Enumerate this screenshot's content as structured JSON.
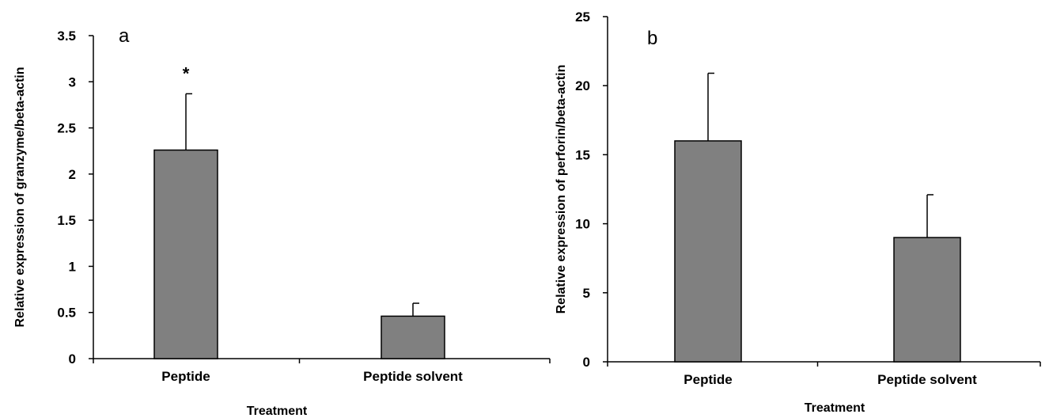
{
  "chart_data": [
    {
      "type": "bar",
      "panel_label": "a",
      "categories": [
        "Peptide",
        "Peptide solvent"
      ],
      "values": [
        2.26,
        0.46
      ],
      "error_upper": [
        2.87,
        0.6
      ],
      "annotations": [
        "*",
        ""
      ],
      "xlabel": "Treatment",
      "ylabel": "Relative expression of granzyme/beta-actin",
      "ylim": [
        0,
        3.5
      ],
      "yticks": [
        0,
        0.5,
        1,
        1.5,
        2,
        2.5,
        3,
        3.5
      ],
      "ytick_labels": [
        "0",
        "0.5",
        "1",
        "1.5",
        "2",
        "2.5",
        "3",
        "3.5"
      ],
      "grid": false,
      "bar_color": "#808080"
    },
    {
      "type": "bar",
      "panel_label": "b",
      "categories": [
        "Peptide",
        "Peptide solvent"
      ],
      "values": [
        16.0,
        9.0
      ],
      "error_upper": [
        20.9,
        12.1
      ],
      "annotations": [
        "",
        ""
      ],
      "xlabel": "Treatment",
      "ylabel": "Relative expression of perforin/beta-actin",
      "ylim": [
        0,
        25
      ],
      "yticks": [
        0,
        5,
        10,
        15,
        20,
        25
      ],
      "ytick_labels": [
        "0",
        "5",
        "10",
        "15",
        "20",
        "25"
      ],
      "grid": false,
      "bar_color": "#808080"
    }
  ]
}
